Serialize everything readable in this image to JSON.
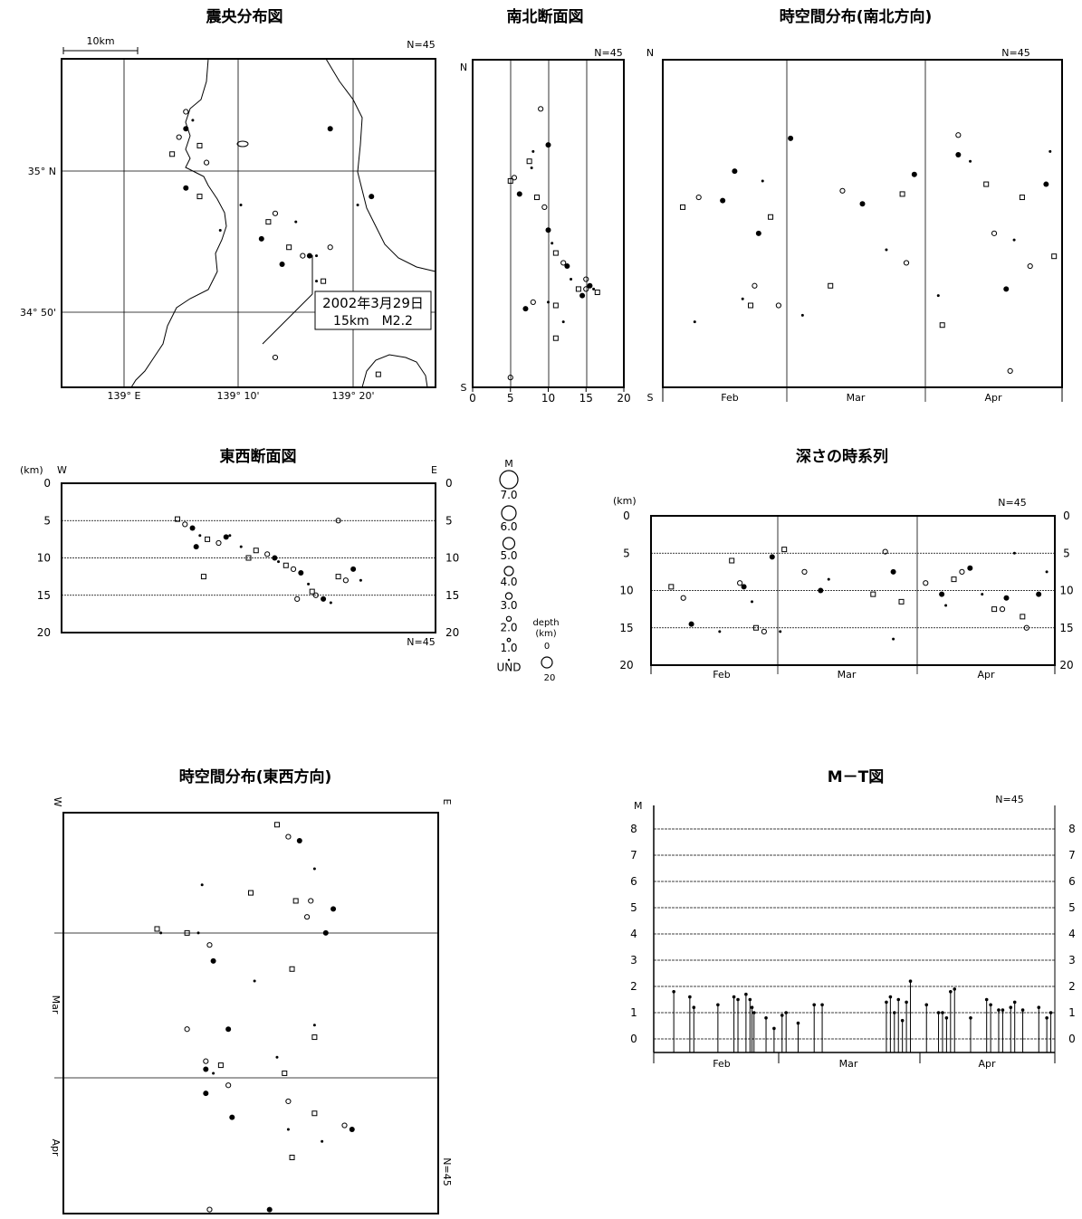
{
  "titles": {
    "epicenter": "震央分布図",
    "ns_section": "南北断面図",
    "ns_time": "時空間分布(南北方向)",
    "ew_section": "東西断面図",
    "depth_time": "深さの時系列",
    "ew_time": "時空間分布(東西方向)",
    "mt": "M－T図"
  },
  "labels": {
    "n_count": "N=45",
    "scale_bar": "10km",
    "km": "(km)",
    "W": "W",
    "E": "E",
    "N": "N",
    "S": "S",
    "M": "M",
    "depth": "depth",
    "depth_unit": "(km)",
    "depth_0": "0",
    "depth_20": "20",
    "lat_35": "35° N",
    "lat_3450": "34° 50'",
    "lon_139": "139° E",
    "lon_13910": "139° 10'",
    "lon_13920": "139° 20'"
  },
  "annotation": {
    "date": "2002年3月29日",
    "detail": "15km　M2.2"
  },
  "months": [
    "Feb",
    "Mar",
    "Apr"
  ],
  "legend": {
    "magnitudes": [
      "7.0",
      "6.0",
      "5.0",
      "4.0",
      "3.0",
      "2.0",
      "1.0",
      "UND"
    ]
  },
  "chart_data": [
    {
      "type": "scatter",
      "title": "震央分布図",
      "count_label": "N=45",
      "xlabel": "",
      "ylabel": "",
      "x_ticks": [
        "139° E",
        "139° 10'",
        "139° 20'"
      ],
      "y_ticks": [
        "35° N",
        "34° 50'"
      ],
      "annotation": "2002年3月29日 15km M2.2",
      "points_lon_lat": [
        [
          139.07,
          35.02
        ],
        [
          139.08,
          35.04
        ],
        [
          139.09,
          35.05
        ],
        [
          139.1,
          35.06
        ],
        [
          139.11,
          35.03
        ],
        [
          139.12,
          35.01
        ],
        [
          139.09,
          34.98
        ],
        [
          139.17,
          34.96
        ],
        [
          139.21,
          34.94
        ],
        [
          139.22,
          34.95
        ],
        [
          139.2,
          34.92
        ],
        [
          139.25,
          34.94
        ],
        [
          139.24,
          34.91
        ],
        [
          139.26,
          34.9
        ],
        [
          139.27,
          34.9
        ],
        [
          139.28,
          34.9
        ],
        [
          139.29,
          34.87
        ],
        [
          139.3,
          34.91
        ],
        [
          139.23,
          34.89
        ],
        [
          139.14,
          34.93
        ],
        [
          139.11,
          34.97
        ],
        [
          139.09,
          35.07
        ],
        [
          139.3,
          35.05
        ],
        [
          139.34,
          34.96
        ],
        [
          139.37,
          34.76
        ],
        [
          139.22,
          34.78
        ],
        [
          139.36,
          34.97
        ],
        [
          139.28,
          34.87
        ]
      ]
    },
    {
      "type": "scatter",
      "title": "南北断面図",
      "count_label": "N=45",
      "xlabel": "",
      "ylabel": "",
      "xlim": [
        0,
        20
      ],
      "x_ticks": [
        0,
        5,
        10,
        15,
        20
      ],
      "points_depth_ns": [
        [
          5,
          0.63
        ],
        [
          5.5,
          0.64
        ],
        [
          6.2,
          0.59
        ],
        [
          7.8,
          0.67
        ],
        [
          8.5,
          0.58
        ],
        [
          9.5,
          0.55
        ],
        [
          10,
          0.48
        ],
        [
          10.5,
          0.44
        ],
        [
          11,
          0.41
        ],
        [
          12,
          0.38
        ],
        [
          12.5,
          0.37
        ],
        [
          13,
          0.33
        ],
        [
          14,
          0.3
        ],
        [
          15,
          0.33
        ],
        [
          15.5,
          0.31
        ],
        [
          16,
          0.3
        ],
        [
          16.5,
          0.29
        ],
        [
          15,
          0.3
        ],
        [
          14.5,
          0.28
        ],
        [
          10,
          0.26
        ],
        [
          11,
          0.25
        ],
        [
          8,
          0.26
        ],
        [
          7,
          0.24
        ],
        [
          12,
          0.2
        ],
        [
          11,
          0.15
        ],
        [
          5,
          0.03
        ],
        [
          10,
          0.74
        ],
        [
          8,
          0.72
        ],
        [
          7.5,
          0.69
        ],
        [
          9,
          0.85
        ]
      ]
    },
    {
      "type": "scatter",
      "title": "時空間分布(南北方向)",
      "count_label": "N=45",
      "categories": [
        "Feb",
        "Mar",
        "Apr"
      ],
      "points": "time vs north-south position"
    },
    {
      "type": "scatter",
      "title": "東西断面図",
      "count_label": "N=45",
      "ylabel": "(km)",
      "ylim": [
        0,
        20
      ],
      "y_ticks": [
        0,
        5,
        10,
        15,
        20
      ],
      "points_ew_depth": [
        [
          0.31,
          4.8
        ],
        [
          0.33,
          5.5
        ],
        [
          0.35,
          6.0
        ],
        [
          0.37,
          7.0
        ],
        [
          0.39,
          7.5
        ],
        [
          0.42,
          8.0
        ],
        [
          0.44,
          7.2
        ],
        [
          0.48,
          8.5
        ],
        [
          0.52,
          9.0
        ],
        [
          0.55,
          9.5
        ],
        [
          0.57,
          10.0
        ],
        [
          0.58,
          10.5
        ],
        [
          0.6,
          11.0
        ],
        [
          0.62,
          11.5
        ],
        [
          0.64,
          12.0
        ],
        [
          0.66,
          13.5
        ],
        [
          0.67,
          14.5
        ],
        [
          0.68,
          15.0
        ],
        [
          0.7,
          15.5
        ],
        [
          0.72,
          16.0
        ],
        [
          0.74,
          12.5
        ],
        [
          0.76,
          13.0
        ],
        [
          0.78,
          11.5
        ],
        [
          0.8,
          13.0
        ],
        [
          0.38,
          12.5
        ],
        [
          0.74,
          5.0
        ],
        [
          0.36,
          8.5
        ],
        [
          0.45,
          7.0
        ],
        [
          0.5,
          10.0
        ],
        [
          0.63,
          15.5
        ]
      ]
    },
    {
      "type": "scatter",
      "title": "深さの時系列",
      "count_label": "N=45",
      "ylabel": "(km)",
      "ylim": [
        0,
        20
      ],
      "y_ticks": [
        0,
        5,
        10,
        15,
        20
      ],
      "categories": [
        "Feb",
        "Mar",
        "Apr"
      ],
      "points_time_depth": [
        [
          0.05,
          9.5
        ],
        [
          0.08,
          11.0
        ],
        [
          0.1,
          14.5
        ],
        [
          0.17,
          15.5
        ],
        [
          0.2,
          6.0
        ],
        [
          0.22,
          9.0
        ],
        [
          0.23,
          9.5
        ],
        [
          0.25,
          11.5
        ],
        [
          0.26,
          15.0
        ],
        [
          0.28,
          15.5
        ],
        [
          0.3,
          5.5
        ],
        [
          0.32,
          15.5
        ],
        [
          0.33,
          4.5
        ],
        [
          0.38,
          7.5
        ],
        [
          0.42,
          10.0
        ],
        [
          0.44,
          8.5
        ],
        [
          0.55,
          10.5
        ],
        [
          0.58,
          4.8
        ],
        [
          0.6,
          7.5
        ],
        [
          0.6,
          16.5
        ],
        [
          0.62,
          11.5
        ],
        [
          0.68,
          9.0
        ],
        [
          0.72,
          10.5
        ],
        [
          0.73,
          12.0
        ],
        [
          0.75,
          8.5
        ],
        [
          0.77,
          7.5
        ],
        [
          0.79,
          7.0
        ],
        [
          0.82,
          10.5
        ],
        [
          0.85,
          12.5
        ],
        [
          0.87,
          12.5
        ],
        [
          0.88,
          11.0
        ],
        [
          0.9,
          5.0
        ],
        [
          0.92,
          13.5
        ],
        [
          0.93,
          15.0
        ],
        [
          0.96,
          10.5
        ],
        [
          0.98,
          7.5
        ]
      ]
    },
    {
      "type": "scatter",
      "title": "時空間分布(東西方向)",
      "count_label": "N=45",
      "categories": [
        "Mar",
        "Apr"
      ],
      "points": "east-west position vs time"
    },
    {
      "type": "bar",
      "title": "M－T図",
      "count_label": "N=45",
      "ylabel": "M",
      "ylim": [
        -0.5,
        9
      ],
      "y_ticks": [
        0,
        1,
        2,
        3,
        4,
        5,
        6,
        7,
        8
      ],
      "categories": [
        "Feb",
        "Mar",
        "Apr"
      ],
      "time_magnitude": [
        [
          0.05,
          1.8
        ],
        [
          0.09,
          1.6
        ],
        [
          0.1,
          1.2
        ],
        [
          0.16,
          1.3
        ],
        [
          0.2,
          1.6
        ],
        [
          0.21,
          1.5
        ],
        [
          0.23,
          1.7
        ],
        [
          0.24,
          1.5
        ],
        [
          0.245,
          1.2
        ],
        [
          0.25,
          1.0
        ],
        [
          0.28,
          0.8
        ],
        [
          0.3,
          0.4
        ],
        [
          0.32,
          0.9
        ],
        [
          0.33,
          1.0
        ],
        [
          0.36,
          0.6
        ],
        [
          0.4,
          1.3
        ],
        [
          0.42,
          1.3
        ],
        [
          0.58,
          1.4
        ],
        [
          0.59,
          1.6
        ],
        [
          0.6,
          1.0
        ],
        [
          0.61,
          1.5
        ],
        [
          0.62,
          0.7
        ],
        [
          0.63,
          1.4
        ],
        [
          0.64,
          2.2
        ],
        [
          0.68,
          1.3
        ],
        [
          0.71,
          1.0
        ],
        [
          0.72,
          1.0
        ],
        [
          0.73,
          0.8
        ],
        [
          0.74,
          1.8
        ],
        [
          0.75,
          1.9
        ],
        [
          0.79,
          0.8
        ],
        [
          0.83,
          1.5
        ],
        [
          0.84,
          1.3
        ],
        [
          0.86,
          1.1
        ],
        [
          0.87,
          1.1
        ],
        [
          0.89,
          1.2
        ],
        [
          0.9,
          1.4
        ],
        [
          0.92,
          1.1
        ],
        [
          0.96,
          1.2
        ],
        [
          0.98,
          0.8
        ],
        [
          0.99,
          1.0
        ]
      ]
    }
  ]
}
